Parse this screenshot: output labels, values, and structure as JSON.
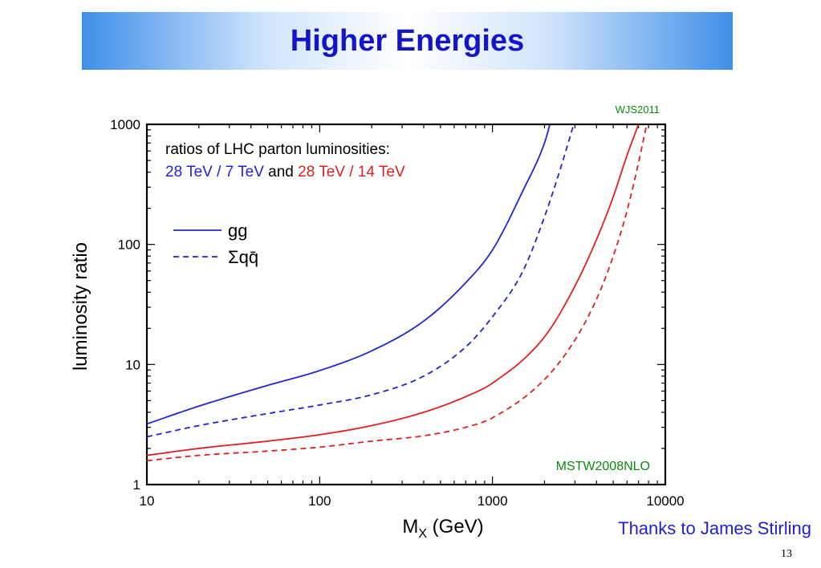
{
  "slide": {
    "title": "Higher Energies",
    "credit": "Thanks to James Stirling",
    "page_number": "13"
  },
  "chart_data": {
    "type": "line",
    "xlabel_main": "M",
    "xlabel_sub": "X",
    "xlabel_rest": " (GeV)",
    "ylabel": "luminosity ratio",
    "xscale": "log",
    "yscale": "log",
    "xlim": [
      10,
      10000
    ],
    "ylim": [
      1,
      1000
    ],
    "x_ticks": [
      "10",
      "100",
      "1000",
      "10000"
    ],
    "y_ticks": [
      "1",
      "10",
      "100",
      "1000"
    ],
    "annotation_line1": "ratios of LHC parton luminosities:",
    "annotation_line2": {
      "part1": "28 TeV / 7 TeV",
      "part2": " and ",
      "part3": "28 TeV / 14 TeV",
      "color1": "#2222dd",
      "color2": "#000000",
      "color3": "#e02020"
    },
    "legend": [
      {
        "label": "gg",
        "style": "solid"
      },
      {
        "label": "Σqq̄",
        "style": "dashed"
      }
    ],
    "watermark_top": "WJS2011",
    "watermark_bottom": "MSTW2008NLO",
    "watermark_color": "#0a8a0a",
    "series": [
      {
        "color": "#2424d0",
        "style": "solid",
        "x": [
          10,
          20,
          50,
          100,
          200,
          400,
          700,
          1000,
          1500,
          2000,
          2150
        ],
        "y": [
          3.2,
          4.5,
          6.7,
          8.9,
          13,
          23,
          48,
          90,
          280,
          700,
          1000
        ]
      },
      {
        "color": "#2424d0",
        "style": "dashed",
        "x": [
          10,
          20,
          50,
          100,
          200,
          400,
          700,
          1000,
          1500,
          2000,
          2500,
          2950
        ],
        "y": [
          2.5,
          3.1,
          3.9,
          4.6,
          5.6,
          8.0,
          14,
          25,
          60,
          170,
          450,
          1000
        ]
      },
      {
        "color": "#e02020",
        "style": "solid",
        "x": [
          10,
          20,
          50,
          100,
          200,
          400,
          700,
          1000,
          2000,
          3000,
          4000,
          5000,
          6000,
          7000
        ],
        "y": [
          1.75,
          2.0,
          2.3,
          2.6,
          3.1,
          4.0,
          5.4,
          7.0,
          17,
          45,
          110,
          250,
          550,
          1000
        ]
      },
      {
        "color": "#e02020",
        "style": "dashed",
        "x": [
          10,
          20,
          50,
          100,
          200,
          400,
          700,
          1000,
          2000,
          3000,
          4000,
          5000,
          6000,
          7000,
          7800
        ],
        "y": [
          1.58,
          1.75,
          1.9,
          2.05,
          2.3,
          2.55,
          3.0,
          3.6,
          7.5,
          16,
          35,
          80,
          190,
          480,
          1000
        ]
      }
    ]
  }
}
